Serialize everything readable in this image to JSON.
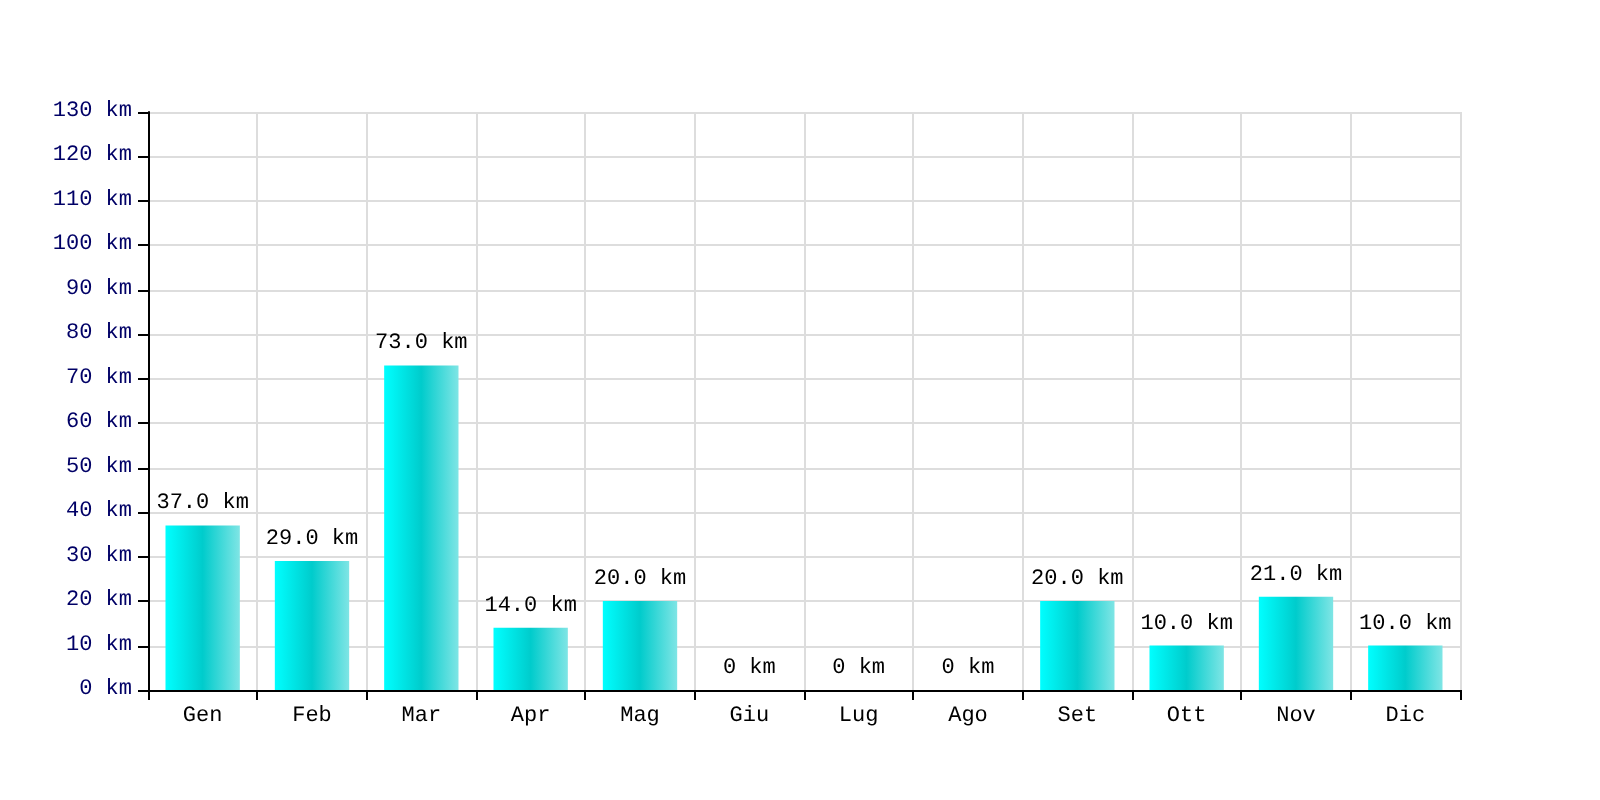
{
  "chart_data": {
    "type": "bar",
    "categories": [
      "Gen",
      "Feb",
      "Mar",
      "Apr",
      "Mag",
      "Giu",
      "Lug",
      "Ago",
      "Set",
      "Ott",
      "Nov",
      "Dic"
    ],
    "values": [
      37,
      29,
      73,
      14,
      20,
      0,
      0,
      0,
      20,
      10,
      21,
      10
    ],
    "value_labels": [
      "37.0 km",
      "29.0 km",
      "73.0 km",
      "14.0 km",
      "20.0 km",
      "0 km",
      "0 km",
      "0 km",
      "20.0 km",
      "10.0 km",
      "21.0 km",
      "10.0 km"
    ],
    "color": "#00cccc",
    "ylim": [
      0,
      130
    ],
    "yticks": [
      {
        "value": 0,
        "label": "0 km"
      },
      {
        "value": 10,
        "label": "10 km"
      },
      {
        "value": 20,
        "label": "20 km"
      },
      {
        "value": 30,
        "label": "30 km"
      },
      {
        "value": 40,
        "label": "40 km"
      },
      {
        "value": 50,
        "label": "50 km"
      },
      {
        "value": 60,
        "label": "60 km"
      },
      {
        "value": 70,
        "label": "70 km"
      },
      {
        "value": 80,
        "label": "80 km"
      },
      {
        "value": 90,
        "label": "90 km"
      },
      {
        "value": 100,
        "label": "100 km"
      },
      {
        "value": 110,
        "label": "110 km"
      },
      {
        "value": 120,
        "label": "120 km"
      },
      {
        "value": 130,
        "label": "130 km"
      }
    ],
    "grid": true
  }
}
